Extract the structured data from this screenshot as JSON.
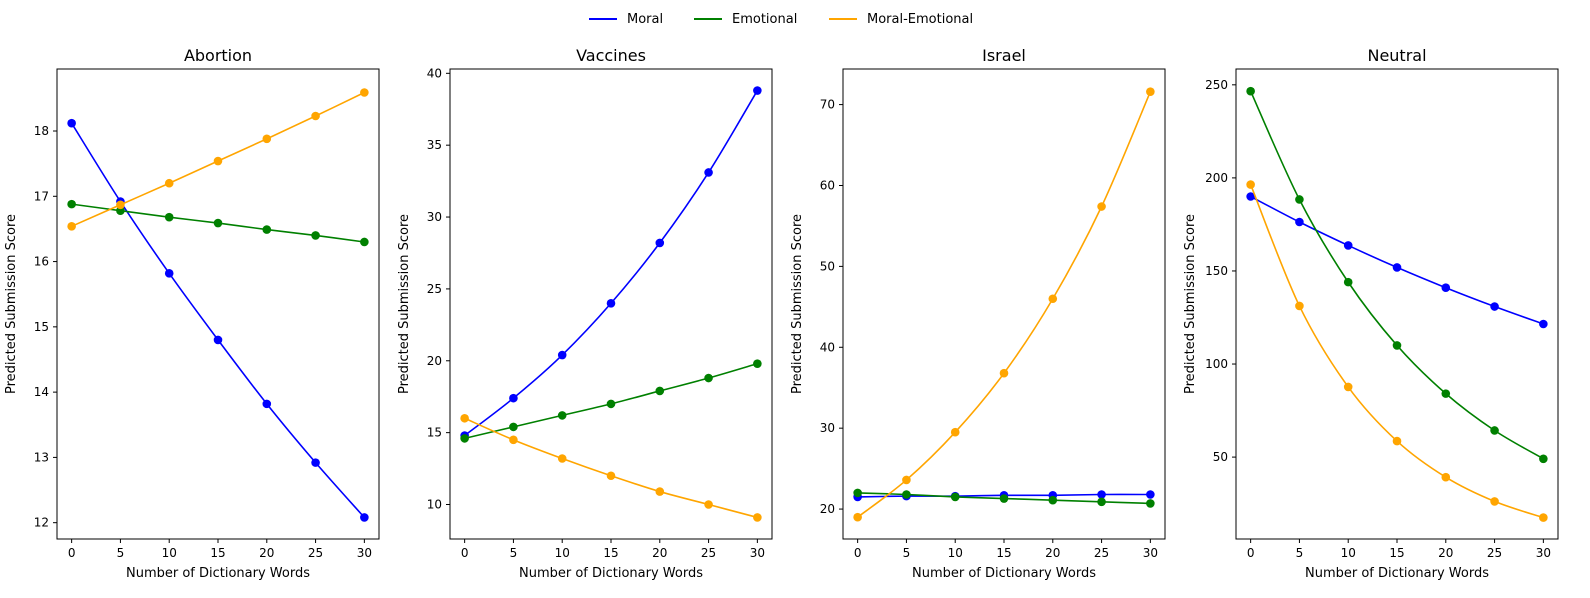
{
  "legend": [
    {
      "name": "Moral",
      "color": "#0000ff"
    },
    {
      "name": "Emotional",
      "color": "#008000"
    },
    {
      "name": "Moral-Emotional",
      "color": "#ffa500"
    }
  ],
  "chart_data": [
    {
      "type": "line",
      "title": "Abortion",
      "xlabel": "Number of Dictionary Words",
      "ylabel": "Predicted Submission Score",
      "x": [
        0,
        5,
        10,
        15,
        20,
        25,
        30
      ],
      "xticks": [
        0,
        5,
        10,
        15,
        20,
        25,
        30
      ],
      "yticks": [
        12,
        13,
        14,
        15,
        16,
        17,
        18
      ],
      "xlim": [
        -1.5,
        31.5
      ],
      "ylim": [
        11.75,
        18.95
      ],
      "grid": false,
      "series": [
        {
          "name": "Moral",
          "color": "#0000ff",
          "values": [
            18.12,
            16.92,
            15.82,
            14.8,
            13.82,
            12.92,
            12.08
          ]
        },
        {
          "name": "Emotional",
          "color": "#008000",
          "values": [
            16.88,
            16.78,
            16.68,
            16.59,
            16.49,
            16.4,
            16.3
          ]
        },
        {
          "name": "Moral-Emotional",
          "color": "#ffa500",
          "values": [
            16.54,
            16.87,
            17.2,
            17.54,
            17.88,
            18.23,
            18.59
          ]
        }
      ]
    },
    {
      "type": "line",
      "title": "Vaccines",
      "xlabel": "Number of Dictionary Words",
      "ylabel": "Predicted Submission Score",
      "x": [
        0,
        5,
        10,
        15,
        20,
        25,
        30
      ],
      "xticks": [
        0,
        5,
        10,
        15,
        20,
        25,
        30
      ],
      "yticks": [
        10,
        15,
        20,
        25,
        30,
        35,
        40
      ],
      "xlim": [
        -1.5,
        31.5
      ],
      "ylim": [
        7.6,
        40.3
      ],
      "grid": false,
      "series": [
        {
          "name": "Moral",
          "color": "#0000ff",
          "values": [
            14.8,
            17.4,
            20.4,
            24.0,
            28.2,
            33.1,
            38.8
          ]
        },
        {
          "name": "Emotional",
          "color": "#008000",
          "values": [
            14.6,
            15.4,
            16.2,
            17.0,
            17.9,
            18.8,
            19.8
          ]
        },
        {
          "name": "Moral-Emotional",
          "color": "#ffa500",
          "values": [
            16.0,
            14.5,
            13.2,
            12.0,
            10.9,
            10.0,
            9.1
          ]
        }
      ]
    },
    {
      "type": "line",
      "title": "Israel",
      "xlabel": "Number of Dictionary Words",
      "ylabel": "Predicted Submission Score",
      "x": [
        0,
        5,
        10,
        15,
        20,
        25,
        30
      ],
      "xticks": [
        0,
        5,
        10,
        15,
        20,
        25,
        30
      ],
      "yticks": [
        20,
        30,
        40,
        50,
        60,
        70
      ],
      "xlim": [
        -1.5,
        31.5
      ],
      "ylim": [
        16.3,
        74.4
      ],
      "grid": false,
      "series": [
        {
          "name": "Moral",
          "color": "#0000ff",
          "values": [
            21.5,
            21.6,
            21.6,
            21.7,
            21.7,
            21.8,
            21.8
          ]
        },
        {
          "name": "Emotional",
          "color": "#008000",
          "values": [
            22.0,
            21.8,
            21.5,
            21.3,
            21.1,
            20.9,
            20.7
          ]
        },
        {
          "name": "Moral-Emotional",
          "color": "#ffa500",
          "values": [
            19.0,
            23.6,
            29.5,
            36.8,
            46.0,
            57.4,
            71.6
          ]
        }
      ]
    },
    {
      "type": "line",
      "title": "Neutral",
      "xlabel": "Number of Dictionary Words",
      "ylabel": "Predicted Submission Score",
      "x": [
        0,
        5,
        10,
        15,
        20,
        25,
        30
      ],
      "xticks": [
        0,
        5,
        10,
        15,
        20,
        25,
        30
      ],
      "yticks": [
        50,
        100,
        150,
        200,
        250
      ],
      "xlim": [
        -1.5,
        31.5
      ],
      "ylim": [
        6.0,
        258.5
      ],
      "grid": false,
      "series": [
        {
          "name": "Moral",
          "color": "#0000ff",
          "values": [
            190.0,
            176.3,
            163.7,
            151.9,
            141.0,
            130.9,
            121.5
          ]
        },
        {
          "name": "Emotional",
          "color": "#008000",
          "values": [
            246.6,
            188.4,
            144.0,
            110.0,
            84.1,
            64.3,
            49.1
          ]
        },
        {
          "name": "Moral-Emotional",
          "color": "#ffa500",
          "values": [
            196.4,
            131.2,
            87.7,
            58.6,
            39.2,
            26.2,
            17.5
          ]
        }
      ]
    }
  ]
}
